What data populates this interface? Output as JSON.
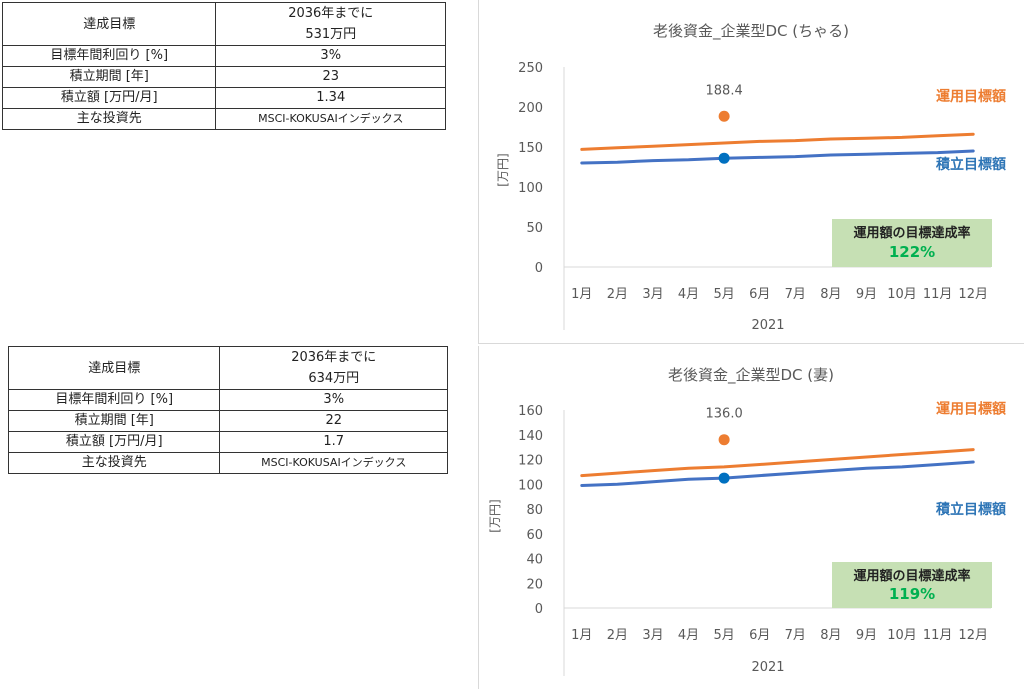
{
  "tables": [
    {
      "rows": [
        {
          "label": "達成目標",
          "value_line1": "2036年までに",
          "value_line2": "531万円"
        },
        {
          "label": "目標年間利回り [%]",
          "value": "3%"
        },
        {
          "label": "積立期間 [年]",
          "value": "23"
        },
        {
          "label": "積立額 [万円/月]",
          "value": "1.34"
        },
        {
          "label": "主な投資先",
          "value": "MSCI-KOKUSAIインデックス"
        }
      ]
    },
    {
      "rows": [
        {
          "label": "達成目標",
          "value_line1": "2036年までに",
          "value_line2": "634万円"
        },
        {
          "label": "目標年間利回り [%]",
          "value": "3%"
        },
        {
          "label": "積立期間 [年]",
          "value": "22"
        },
        {
          "label": "積立額 [万円/月]",
          "value": "1.7"
        },
        {
          "label": "主な投資先",
          "value": "MSCI-KOKUSAIインデックス"
        }
      ]
    }
  ],
  "chart_data": [
    {
      "type": "line",
      "title": "老後資金_企業型DC (ちゃる)",
      "xlabel": "2021",
      "ylabel": "[万円]",
      "categories": [
        "1月",
        "2月",
        "3月",
        "4月",
        "5月",
        "6月",
        "7月",
        "8月",
        "9月",
        "10月",
        "11月",
        "12月"
      ],
      "ylim": [
        0,
        250
      ],
      "yticks": [
        0,
        50,
        100,
        150,
        200,
        250
      ],
      "series": [
        {
          "name": "運用目標額",
          "color": "#ed7d31",
          "values": [
            147,
            149,
            151,
            153,
            155,
            157,
            158,
            160,
            161,
            162,
            164,
            166
          ]
        },
        {
          "name": "積立目標額",
          "color": "#4472c4",
          "values": [
            130,
            131,
            133,
            134,
            136,
            137,
            138,
            140,
            141,
            142,
            143,
            145
          ]
        }
      ],
      "points": [
        {
          "x": "5月",
          "y": 188.4,
          "color": "#ed7d31",
          "label": "188.4"
        },
        {
          "x": "5月",
          "y": 136,
          "color": "#0070c0"
        }
      ],
      "achievement": {
        "title": "運用額の目標達成率",
        "value": "122%",
        "bg": "#c6e0b4"
      }
    },
    {
      "type": "line",
      "title": "老後資金_企業型DC (妻)",
      "xlabel": "2021",
      "ylabel": "[万円]",
      "categories": [
        "1月",
        "2月",
        "3月",
        "4月",
        "5月",
        "6月",
        "7月",
        "8月",
        "9月",
        "10月",
        "11月",
        "12月"
      ],
      "ylim": [
        0,
        160
      ],
      "yticks": [
        0,
        20,
        40,
        60,
        80,
        100,
        120,
        140,
        160
      ],
      "series": [
        {
          "name": "運用目標額",
          "color": "#ed7d31",
          "values": [
            107,
            109,
            111,
            113,
            114,
            116,
            118,
            120,
            122,
            124,
            126,
            128
          ]
        },
        {
          "name": "積立目標額",
          "color": "#4472c4",
          "values": [
            99,
            100,
            102,
            104,
            105,
            107,
            109,
            111,
            113,
            114,
            116,
            118
          ]
        }
      ],
      "points": [
        {
          "x": "5月",
          "y": 136.0,
          "color": "#ed7d31",
          "label": "136.0"
        },
        {
          "x": "5月",
          "y": 105,
          "color": "#0070c0"
        }
      ],
      "achievement": {
        "title": "運用額の目標達成率",
        "value": "119%",
        "bg": "#c6e0b4"
      }
    }
  ]
}
